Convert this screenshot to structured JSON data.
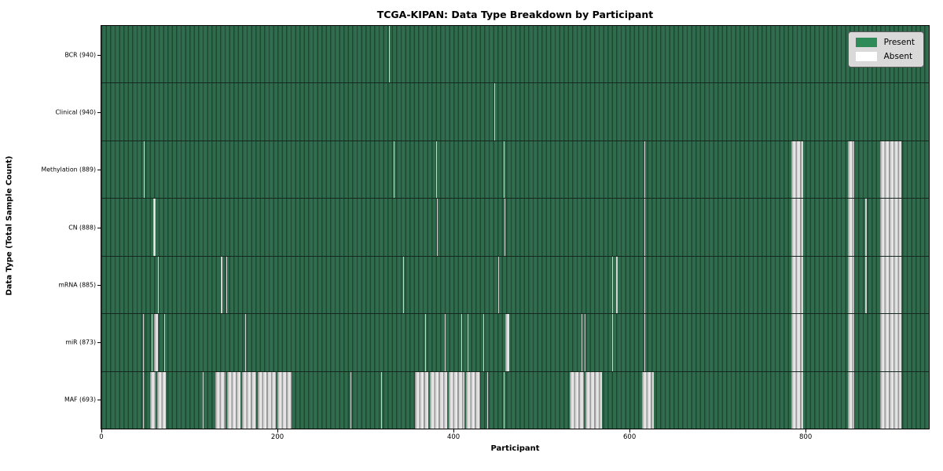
{
  "chart_data": {
    "type": "heatmap",
    "title": "TCGA-KIPAN: Data Type Breakdown by Participant",
    "xlabel": "Participant",
    "ylabel": "Data Type (Total Sample Count)",
    "x_ticks": [
      0,
      200,
      400,
      600,
      800
    ],
    "x_max": 940,
    "grid": false,
    "legend_position": "upper right",
    "legend_entries": [
      {
        "label": "Present",
        "color": "#2e8b57"
      },
      {
        "label": "Absent",
        "color": "#ffffff"
      }
    ],
    "colors": {
      "present": "#2e8b57",
      "present_shade": "#2e6b4b",
      "present_dark_edge": "#1e4836",
      "absent": "#ffffff",
      "absent_shade": "#9a9a9a"
    },
    "rows": [
      {
        "data_type": "BCR",
        "label": "BCR (940)",
        "total_samples": 940,
        "absent_ranges": [
          [
            327,
            328
          ]
        ]
      },
      {
        "data_type": "Clinical",
        "label": "Clinical (940)",
        "total_samples": 940,
        "absent_ranges": [
          [
            446,
            447
          ]
        ]
      },
      {
        "data_type": "Methylation",
        "label": "Methylation (889)",
        "total_samples": 889,
        "absent_ranges": [
          [
            48,
            49
          ],
          [
            332,
            333
          ],
          [
            380,
            381
          ],
          [
            457,
            458
          ],
          [
            617,
            618
          ],
          [
            784,
            797
          ],
          [
            848,
            855
          ],
          [
            885,
            909
          ]
        ]
      },
      {
        "data_type": "CN",
        "label": "CN (888)",
        "total_samples": 888,
        "absent_ranges": [
          [
            59,
            62
          ],
          [
            381,
            382
          ],
          [
            458,
            459
          ],
          [
            617,
            618
          ],
          [
            784,
            797
          ],
          [
            848,
            855
          ],
          [
            868,
            869
          ],
          [
            885,
            909
          ]
        ]
      },
      {
        "data_type": "mRNA",
        "label": "mRNA (885)",
        "total_samples": 885,
        "absent_ranges": [
          [
            64,
            65
          ],
          [
            136,
            137
          ],
          [
            142,
            143
          ],
          [
            343,
            344
          ],
          [
            451,
            452
          ],
          [
            580,
            581
          ],
          [
            585,
            586
          ],
          [
            617,
            618
          ],
          [
            784,
            797
          ],
          [
            848,
            855
          ],
          [
            868,
            869
          ],
          [
            885,
            909
          ]
        ]
      },
      {
        "data_type": "miR",
        "label": "miR (873)",
        "total_samples": 873,
        "absent_ranges": [
          [
            47,
            48
          ],
          [
            57,
            58
          ],
          [
            60,
            64
          ],
          [
            71,
            72
          ],
          [
            163,
            164
          ],
          [
            368,
            369
          ],
          [
            390,
            391
          ],
          [
            409,
            410
          ],
          [
            416,
            417
          ],
          [
            434,
            435
          ],
          [
            459,
            463
          ],
          [
            545,
            546
          ],
          [
            549,
            550
          ],
          [
            580,
            581
          ],
          [
            617,
            618
          ],
          [
            784,
            797
          ],
          [
            848,
            855
          ],
          [
            885,
            909
          ]
        ]
      },
      {
        "data_type": "MAF",
        "label": "MAF (693)",
        "total_samples": 693,
        "absent_ranges": [
          [
            47,
            48
          ],
          [
            55,
            62
          ],
          [
            63,
            73
          ],
          [
            115,
            116
          ],
          [
            129,
            141
          ],
          [
            143,
            158
          ],
          [
            160,
            176
          ],
          [
            178,
            198
          ],
          [
            200,
            216
          ],
          [
            283,
            284
          ],
          [
            318,
            319
          ],
          [
            356,
            371
          ],
          [
            373,
            393
          ],
          [
            395,
            412
          ],
          [
            414,
            430
          ],
          [
            438,
            439
          ],
          [
            457,
            458
          ],
          [
            532,
            548
          ],
          [
            550,
            569
          ],
          [
            614,
            628
          ],
          [
            784,
            797
          ],
          [
            848,
            855
          ],
          [
            885,
            909
          ]
        ]
      }
    ]
  }
}
